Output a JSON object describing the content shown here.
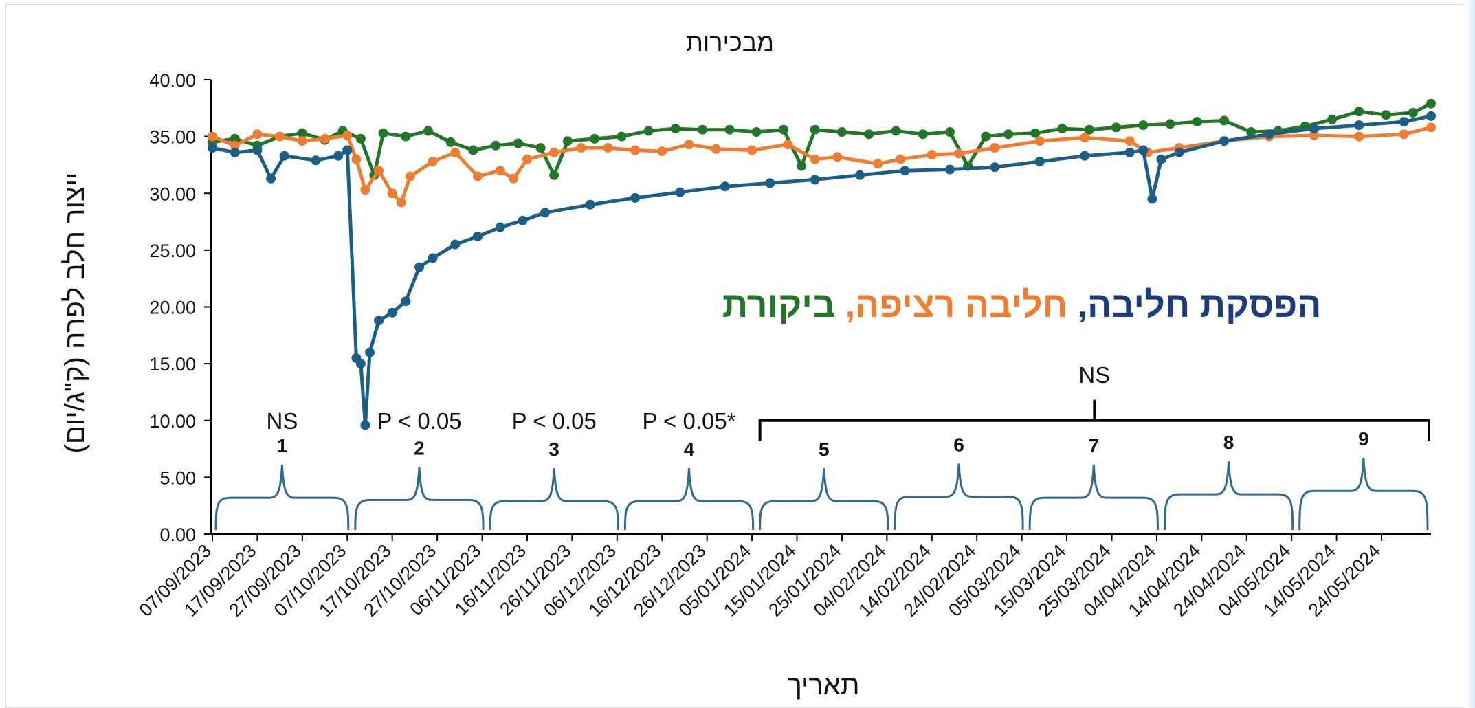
{
  "chart_data": {
    "type": "line",
    "title": "מבכירות",
    "xlabel": "תאריך",
    "ylabel": "ייצור חלב לפרה (ק\"ג/יום)",
    "ylim": [
      0,
      40
    ],
    "y_ticks": [
      "0.00",
      "5.00",
      "10.00",
      "15.00",
      "20.00",
      "25.00",
      "30.00",
      "35.00",
      "40.00"
    ],
    "x_range": [
      "2023-09-07",
      "2024-06-04"
    ],
    "x_tick_labels": [
      "07/09/2023",
      "17/09/2023",
      "27/09/2023",
      "07/10/2023",
      "17/10/2023",
      "27/10/2023",
      "06/11/2023",
      "16/11/2023",
      "26/11/2023",
      "06/12/2023",
      "16/12/2023",
      "26/12/2023",
      "05/01/2024",
      "15/01/2024",
      "25/01/2024",
      "04/02/2024",
      "14/02/2024",
      "24/02/2024",
      "05/03/2024",
      "15/03/2024",
      "25/03/2024",
      "04/04/2024",
      "14/04/2024",
      "24/04/2024",
      "04/05/2024",
      "14/05/2024",
      "24/05/2024"
    ],
    "grid": false,
    "series": [
      {
        "name": "הפסקת חליבה",
        "color": "#1c5f86",
        "points": [
          [
            "2023-09-07",
            34.0
          ],
          [
            "2023-09-12",
            33.6
          ],
          [
            "2023-09-17",
            33.8
          ],
          [
            "2023-09-20",
            31.3
          ],
          [
            "2023-09-23",
            33.3
          ],
          [
            "2023-09-30",
            32.9
          ],
          [
            "2023-10-05",
            33.3
          ],
          [
            "2023-10-07",
            33.8
          ],
          [
            "2023-10-09",
            15.5
          ],
          [
            "2023-10-10",
            15.0
          ],
          [
            "2023-10-11",
            9.6
          ],
          [
            "2023-10-12",
            16.0
          ],
          [
            "2023-10-14",
            18.8
          ],
          [
            "2023-10-17",
            19.5
          ],
          [
            "2023-10-20",
            20.5
          ],
          [
            "2023-10-23",
            23.5
          ],
          [
            "2023-10-26",
            24.3
          ],
          [
            "2023-10-31",
            25.5
          ],
          [
            "2023-11-05",
            26.2
          ],
          [
            "2023-11-10",
            27.0
          ],
          [
            "2023-11-15",
            27.6
          ],
          [
            "2023-11-20",
            28.3
          ],
          [
            "2023-11-30",
            29.0
          ],
          [
            "2023-12-10",
            29.6
          ],
          [
            "2023-12-20",
            30.1
          ],
          [
            "2023-12-30",
            30.6
          ],
          [
            "2024-01-09",
            30.9
          ],
          [
            "2024-01-19",
            31.2
          ],
          [
            "2024-01-29",
            31.6
          ],
          [
            "2024-02-08",
            32.0
          ],
          [
            "2024-02-18",
            32.1
          ],
          [
            "2024-02-28",
            32.3
          ],
          [
            "2024-03-09",
            32.8
          ],
          [
            "2024-03-19",
            33.3
          ],
          [
            "2024-03-29",
            33.6
          ],
          [
            "2024-04-01",
            33.8
          ],
          [
            "2024-04-03",
            29.5
          ],
          [
            "2024-04-05",
            33.0
          ],
          [
            "2024-04-09",
            33.6
          ],
          [
            "2024-04-19",
            34.6
          ],
          [
            "2024-04-29",
            35.2
          ],
          [
            "2024-05-09",
            35.7
          ],
          [
            "2024-05-19",
            36.0
          ],
          [
            "2024-05-29",
            36.3
          ],
          [
            "2024-06-04",
            36.8
          ]
        ]
      },
      {
        "name": "חליבה רציפה",
        "color": "#ee7d31",
        "points": [
          [
            "2023-09-07",
            35.0
          ],
          [
            "2023-09-12",
            34.2
          ],
          [
            "2023-09-17",
            35.2
          ],
          [
            "2023-09-22",
            35.0
          ],
          [
            "2023-09-27",
            34.6
          ],
          [
            "2023-10-02",
            34.8
          ],
          [
            "2023-10-07",
            35.1
          ],
          [
            "2023-10-09",
            33.0
          ],
          [
            "2023-10-11",
            30.3
          ],
          [
            "2023-10-14",
            32.0
          ],
          [
            "2023-10-17",
            30.0
          ],
          [
            "2023-10-19",
            29.2
          ],
          [
            "2023-10-21",
            31.5
          ],
          [
            "2023-10-26",
            32.8
          ],
          [
            "2023-10-31",
            33.6
          ],
          [
            "2023-11-05",
            31.5
          ],
          [
            "2023-11-10",
            32.0
          ],
          [
            "2023-11-13",
            31.3
          ],
          [
            "2023-11-16",
            33.0
          ],
          [
            "2023-11-22",
            33.6
          ],
          [
            "2023-11-28",
            34.0
          ],
          [
            "2023-12-04",
            34.0
          ],
          [
            "2023-12-10",
            33.8
          ],
          [
            "2023-12-16",
            33.7
          ],
          [
            "2023-12-22",
            34.3
          ],
          [
            "2023-12-28",
            33.9
          ],
          [
            "2024-01-05",
            33.8
          ],
          [
            "2024-01-13",
            34.3
          ],
          [
            "2024-01-19",
            33.0
          ],
          [
            "2024-01-24",
            33.2
          ],
          [
            "2024-02-02",
            32.6
          ],
          [
            "2024-02-07",
            33.0
          ],
          [
            "2024-02-14",
            33.4
          ],
          [
            "2024-02-20",
            33.5
          ],
          [
            "2024-02-28",
            34.0
          ],
          [
            "2024-03-09",
            34.6
          ],
          [
            "2024-03-19",
            34.9
          ],
          [
            "2024-03-29",
            34.6
          ],
          [
            "2024-04-02",
            33.6
          ],
          [
            "2024-04-09",
            34.0
          ],
          [
            "2024-04-19",
            34.6
          ],
          [
            "2024-04-29",
            35.0
          ],
          [
            "2024-05-09",
            35.1
          ],
          [
            "2024-05-19",
            35.0
          ],
          [
            "2024-05-29",
            35.2
          ],
          [
            "2024-06-04",
            35.8
          ]
        ]
      },
      {
        "name": "ביקורת",
        "color": "#237628",
        "points": [
          [
            "2023-09-07",
            34.5
          ],
          [
            "2023-09-12",
            34.8
          ],
          [
            "2023-09-17",
            34.2
          ],
          [
            "2023-09-22",
            35.0
          ],
          [
            "2023-09-27",
            35.3
          ],
          [
            "2023-10-02",
            34.7
          ],
          [
            "2023-10-06",
            35.5
          ],
          [
            "2023-10-10",
            34.8
          ],
          [
            "2023-10-13",
            31.6
          ],
          [
            "2023-10-15",
            35.3
          ],
          [
            "2023-10-20",
            35.0
          ],
          [
            "2023-10-25",
            35.5
          ],
          [
            "2023-10-30",
            34.5
          ],
          [
            "2023-11-04",
            33.8
          ],
          [
            "2023-11-09",
            34.2
          ],
          [
            "2023-11-14",
            34.4
          ],
          [
            "2023-11-19",
            34.0
          ],
          [
            "2023-11-22",
            31.6
          ],
          [
            "2023-11-25",
            34.6
          ],
          [
            "2023-12-01",
            34.8
          ],
          [
            "2023-12-07",
            35.0
          ],
          [
            "2023-12-13",
            35.5
          ],
          [
            "2023-12-19",
            35.7
          ],
          [
            "2023-12-25",
            35.6
          ],
          [
            "2023-12-31",
            35.6
          ],
          [
            "2024-01-06",
            35.4
          ],
          [
            "2024-01-12",
            35.6
          ],
          [
            "2024-01-16",
            32.4
          ],
          [
            "2024-01-19",
            35.6
          ],
          [
            "2024-01-25",
            35.4
          ],
          [
            "2024-01-31",
            35.2
          ],
          [
            "2024-02-06",
            35.5
          ],
          [
            "2024-02-12",
            35.2
          ],
          [
            "2024-02-18",
            35.4
          ],
          [
            "2024-02-22",
            32.4
          ],
          [
            "2024-02-26",
            35.0
          ],
          [
            "2024-03-02",
            35.2
          ],
          [
            "2024-03-08",
            35.3
          ],
          [
            "2024-03-14",
            35.7
          ],
          [
            "2024-03-20",
            35.6
          ],
          [
            "2024-03-26",
            35.8
          ],
          [
            "2024-04-01",
            36.0
          ],
          [
            "2024-04-07",
            36.1
          ],
          [
            "2024-04-13",
            36.3
          ],
          [
            "2024-04-19",
            36.4
          ],
          [
            "2024-04-25",
            35.4
          ],
          [
            "2024-05-01",
            35.5
          ],
          [
            "2024-05-07",
            35.9
          ],
          [
            "2024-05-13",
            36.5
          ],
          [
            "2024-05-19",
            37.2
          ],
          [
            "2024-05-25",
            36.9
          ],
          [
            "2024-05-31",
            37.1
          ],
          [
            "2024-06-04",
            37.9
          ]
        ]
      }
    ],
    "legend_parts": [
      {
        "text": "הפסקת חליבה,",
        "color": "#1c3d7a"
      },
      {
        "text": "חליבה רציפה,",
        "color": "#ee7d31"
      },
      {
        "text": "ביקורת",
        "color": "#237628"
      }
    ],
    "segments": [
      {
        "label": "1",
        "start": "2023-09-07",
        "end": "2023-10-08",
        "level": 3.2
      },
      {
        "label": "2",
        "start": "2023-10-08",
        "end": "2023-11-07",
        "level": 3.0
      },
      {
        "label": "3",
        "start": "2023-11-07",
        "end": "2023-12-07",
        "level": 2.9
      },
      {
        "label": "4",
        "start": "2023-12-07",
        "end": "2024-01-06",
        "level": 2.9
      },
      {
        "label": "5",
        "start": "2024-01-06",
        "end": "2024-02-05",
        "level": 2.9
      },
      {
        "label": "6",
        "start": "2024-02-05",
        "end": "2024-03-06",
        "level": 3.3
      },
      {
        "label": "7",
        "start": "2024-03-06",
        "end": "2024-04-05",
        "level": 3.2
      },
      {
        "label": "8",
        "start": "2024-04-05",
        "end": "2024-05-05",
        "level": 3.5
      },
      {
        "label": "9",
        "start": "2024-05-05",
        "end": "2024-06-04",
        "level": 3.8
      }
    ],
    "significance": [
      {
        "text": "NS",
        "segment": "1"
      },
      {
        "text": "P < 0.05",
        "segment": "2"
      },
      {
        "text": "P < 0.05",
        "segment": "3"
      },
      {
        "text": "P < 0.05*",
        "segment": "4"
      },
      {
        "text": "NS",
        "segment": "5-9"
      }
    ]
  }
}
